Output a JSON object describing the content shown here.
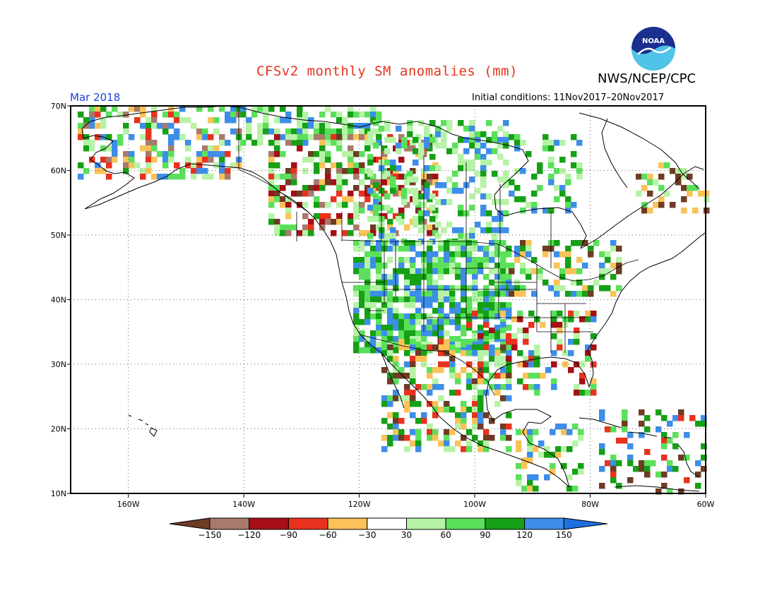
{
  "title": "CFSv2 monthly SM anomalies (mm)",
  "organization": "NWS/NCEP/CPC",
  "logo_text": "NOAA",
  "valid_period": "Mar 2018",
  "initial_conditions": "Initial conditions: 11Nov2017–20Nov2017",
  "map": {
    "lon_labels": [
      "160W",
      "140W",
      "120W",
      "100W",
      "80W",
      "60W"
    ],
    "lat_labels": [
      "70N",
      "60N",
      "50N",
      "40N",
      "30N",
      "20N",
      "10N"
    ],
    "extent": {
      "lon": [
        -170,
        -60
      ],
      "lat": [
        10,
        70
      ]
    },
    "grid": "dotted"
  },
  "colorbar": {
    "labels": [
      "−150",
      "−120",
      "−90",
      "−60",
      "−30",
      "30",
      "60",
      "90",
      "120",
      "150"
    ],
    "colors": [
      "#6e3b24",
      "#a87a6c",
      "#a50f15",
      "#e8321e",
      "#fac258",
      "#ffffff",
      "#b6f3a6",
      "#5be05b",
      "#15a015",
      "#3d8ee8",
      "#1f6fe0"
    ]
  }
}
